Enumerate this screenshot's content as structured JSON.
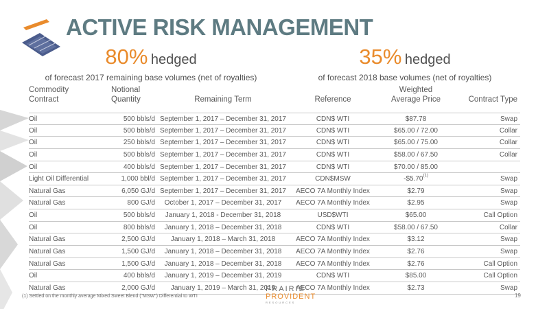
{
  "header": {
    "title": "ACTIVE RISK MANAGEMENT"
  },
  "hedge_summary": [
    {
      "percent": "80%",
      "word": "hedged",
      "subtitle": "of forecast 2017 remaining base volumes (net of royalties)"
    },
    {
      "percent": "35%",
      "word": "hedged",
      "subtitle": "of forecast 2018 base volumes (net of royalties)"
    }
  ],
  "table": {
    "headers": {
      "commodity": [
        "Commodity",
        "Contract"
      ],
      "quantity": [
        "Notional",
        "Quantity"
      ],
      "term": "Remaining Term",
      "reference": "Reference",
      "price": [
        "Weighted",
        "Average Price"
      ],
      "type": "Contract Type"
    },
    "rows": [
      {
        "commodity": "Oil",
        "quantity": "500 bbls/d",
        "term": "September 1, 2017 – December 31, 2017",
        "reference": "CDN$ WTI",
        "price": "$87.78",
        "note": "",
        "type": "Swap"
      },
      {
        "commodity": "Oil",
        "quantity": "500 bbls/d",
        "term": "September 1, 2017 – December 31, 2017",
        "reference": "CDN$ WTI",
        "price": "$65.00 / 72.00",
        "note": "",
        "type": "Collar"
      },
      {
        "commodity": "Oil",
        "quantity": "250 bbls/d",
        "term": "September 1, 2017 – December 31, 2017",
        "reference": "CDN$ WTI",
        "price": "$65.00 / 75.00",
        "note": "",
        "type": "Collar"
      },
      {
        "commodity": "Oil",
        "quantity": "500 bbls/d",
        "term": "September 1, 2017 – December 31, 2017",
        "reference": "CDN$ WTI",
        "price": "$58.00 / 67.50",
        "note": "",
        "type": "Collar"
      },
      {
        "commodity": "Oil",
        "quantity": "400 bbls/d",
        "term": "September 1, 2017 – December 31, 2017",
        "reference": "CDN$ WTI",
        "price": "$70.00 / 85.00",
        "note": "",
        "type": ""
      },
      {
        "commodity": "Light Oil Differential",
        "quantity": "1,000 bbl/d",
        "term": "September 1, 2017 – December 31, 2017",
        "reference": "CDN$MSW",
        "price": "-$5.70",
        "note": "(1)",
        "type": "Swap"
      },
      {
        "commodity": "Natural Gas",
        "quantity": "6,050 GJ/d",
        "term": "September 1, 2017 – December 31, 2017",
        "reference": "AECO 7A Monthly Index",
        "price": "$2.79",
        "note": "",
        "type": "Swap"
      },
      {
        "commodity": "Natural Gas",
        "quantity": "800 GJ/d",
        "term": "October 1, 2017 – December 31, 2017",
        "reference": "AECO 7A Monthly Index",
        "price": "$2.95",
        "note": "",
        "type": "Swap"
      },
      {
        "commodity": "Oil",
        "quantity": "500 bbls/d",
        "term": "January 1, 2018 - December 31, 2018",
        "reference": "USD$WTI",
        "price": "$65.00",
        "note": "",
        "type": "Call Option"
      },
      {
        "commodity": "Oil",
        "quantity": "800 bbls/d",
        "term": "January 1, 2018 – December 31, 2018",
        "reference": "CDN$ WTI",
        "price": "$58.00 / 67.50",
        "note": "",
        "type": "Collar"
      },
      {
        "commodity": "Natural Gas",
        "quantity": "2,500 GJ/d",
        "term": "January 1, 2018 – March 31, 2018",
        "reference": "AECO 7A Monthly Index",
        "price": "$3.12",
        "note": "",
        "type": "Swap"
      },
      {
        "commodity": "Natural Gas",
        "quantity": "1,500 GJ/d",
        "term": "January 1, 2018 – December 31, 2018",
        "reference": "AECO 7A Monthly Index",
        "price": "$2.76",
        "note": "",
        "type": "Swap"
      },
      {
        "commodity": "Natural Gas",
        "quantity": "1,500 GJ/d",
        "term": "January 1, 2018 – December 31, 2018",
        "reference": "AECO 7A Monthly Index",
        "price": "$2.76",
        "note": "",
        "type": "Call Option"
      },
      {
        "commodity": "Oil",
        "quantity": "400 bbls/d",
        "term": "January 1, 2019 – December 31, 2019",
        "reference": "CDN$ WTI",
        "price": "$85.00",
        "note": "",
        "type": "Call Option"
      },
      {
        "commodity": "Natural Gas",
        "quantity": "2,000 GJ/d",
        "term": "January 1, 2019 – March 31, 2019",
        "reference": "AECO 7A Monthly Index",
        "price": "$2.73",
        "note": "",
        "type": "Swap"
      }
    ]
  },
  "footer": {
    "footnote": "(1)   Settled on the monthly average Mixed Sweet Blend (\"MSW\") Differential to WTI",
    "brand_line1": "PRAIRIE",
    "brand_line2": "PROVIDENT",
    "brand_line3": "RESOURCES",
    "page_number": "19"
  },
  "colors": {
    "title": "#5e7b82",
    "accent": "#e98b2c"
  }
}
